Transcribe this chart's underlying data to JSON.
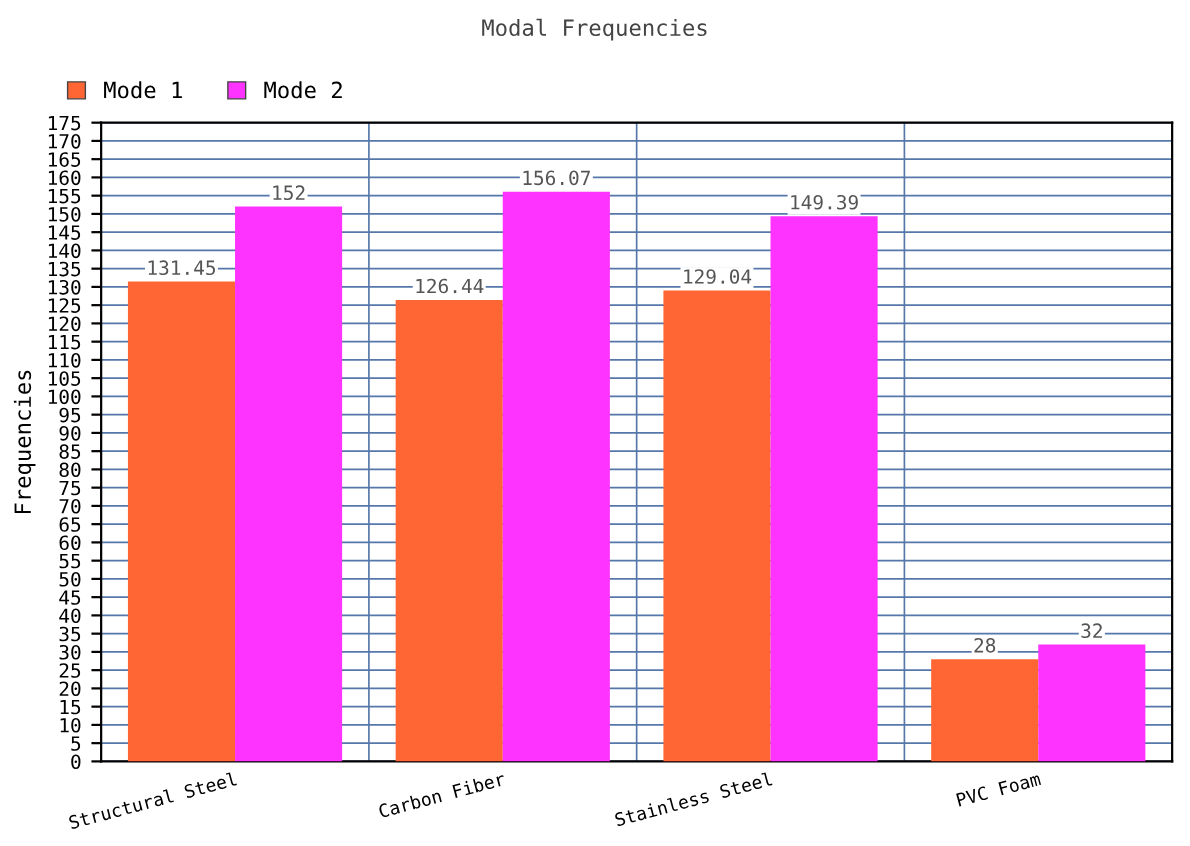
{
  "chart_data": {
    "type": "bar",
    "title": "Modal Frequencies",
    "ylabel": "Frequencies",
    "categories": [
      "Structural Steel",
      "Carbon Fiber",
      "Stainless Steel",
      "PVC Foam"
    ],
    "series": [
      {
        "name": "Mode 1",
        "color": "#ff6633",
        "values": [
          131.45,
          126.44,
          129.04,
          28
        ]
      },
      {
        "name": "Mode 2",
        "color": "#ff33ff",
        "values": [
          152,
          156.07,
          149.39,
          32
        ]
      }
    ],
    "ylim": [
      0,
      175
    ],
    "yticks": [
      0,
      5,
      10,
      15,
      20,
      25,
      30,
      35,
      40,
      45,
      50,
      55,
      60,
      65,
      70,
      75,
      80,
      85,
      90,
      95,
      100,
      105,
      110,
      115,
      120,
      125,
      130,
      135,
      140,
      145,
      150,
      155,
      160,
      165,
      170,
      175
    ],
    "grid": true,
    "legend": "top left",
    "data_labels": true
  }
}
